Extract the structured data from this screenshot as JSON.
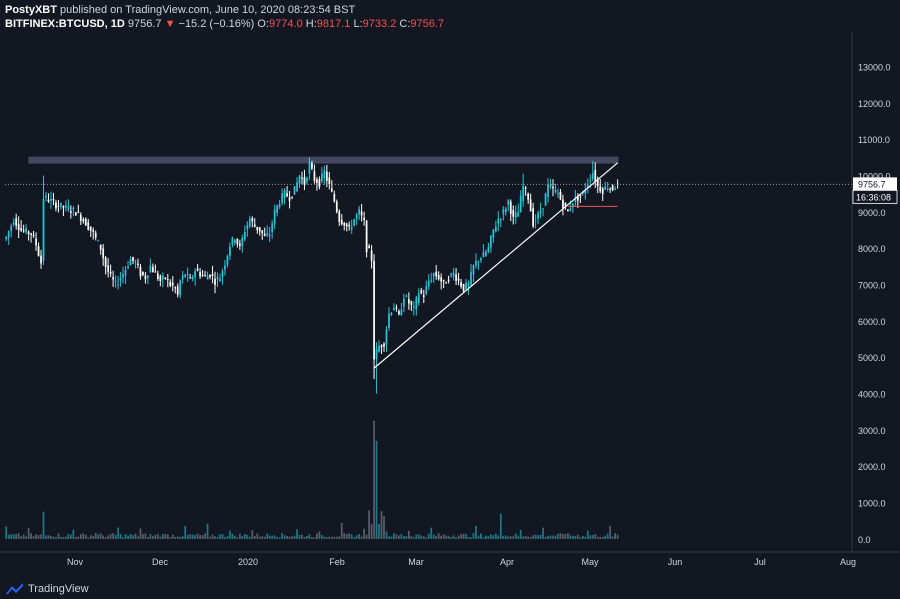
{
  "header": {
    "author": "PostyXBT",
    "published": "published on TradingView.com, June 10, 2020 08:23:54 BST"
  },
  "symbol_line": {
    "symbol": "BITFINEX:BTCUSD, 1D",
    "last": "9756.7",
    "change_icon": "triangle-down-icon",
    "change": "−15.2 (−0.16%)",
    "open_label": "O:",
    "open": "9774.0",
    "high_label": "H:",
    "high": "9817.1",
    "low_label": "L:",
    "low": "9733.2",
    "close_label": "C:",
    "close": "9756.7"
  },
  "price_tag": {
    "price": "9756.7",
    "countdown": "16:36:08"
  },
  "footer": {
    "brand": "TradingView",
    "logo_icon": "tradingview-logo-icon"
  },
  "colors": {
    "background": "#131722",
    "up": "#26c6da",
    "down": "#ffffff",
    "resistance_zone": "#9fa8da",
    "trendline": "#ffffff",
    "stop_line": "#ef5350",
    "axis_text": "#d1d4dc"
  },
  "chart_data": {
    "type": "candlestick",
    "x_ticks": [
      "Nov",
      "Dec",
      "2020",
      "Feb",
      "Mar",
      "Apr",
      "May",
      "Jun",
      "Jul",
      "Aug"
    ],
    "y_ticks": [
      0.0,
      1000.0,
      2000.0,
      3000.0,
      4000.0,
      5000.0,
      6000.0,
      7000.0,
      8000.0,
      9000.0,
      10000.0,
      11000.0,
      12000.0,
      13000.0
    ],
    "y_tick_labels": [
      "0.0",
      "1000.0",
      "2000.0",
      "3000.0",
      "4000.0",
      "5000.0",
      "6000.0",
      "7000.0",
      "8000.0",
      "9000.0",
      "10000.0",
      "11000.0",
      "12000.0",
      "13000.0"
    ],
    "ylim": [
      -250,
      13950
    ],
    "close_path": [
      [
        0,
        8300
      ],
      [
        3,
        8800
      ],
      [
        6,
        8500
      ],
      [
        10,
        8400
      ],
      [
        12,
        8100
      ],
      [
        14,
        7600
      ],
      [
        15,
        9400
      ],
      [
        18,
        9300
      ],
      [
        20,
        9200
      ],
      [
        24,
        9100
      ],
      [
        28,
        9000
      ],
      [
        32,
        8700
      ],
      [
        35,
        8400
      ],
      [
        38,
        8000
      ],
      [
        40,
        7500
      ],
      [
        42,
        7200
      ],
      [
        44,
        7000
      ],
      [
        47,
        7300
      ],
      [
        50,
        7700
      ],
      [
        52,
        7600
      ],
      [
        54,
        7300
      ],
      [
        56,
        7200
      ],
      [
        58,
        7500
      ],
      [
        60,
        7300
      ],
      [
        62,
        7100
      ],
      [
        64,
        7200
      ],
      [
        66,
        7000
      ],
      [
        68,
        6900
      ],
      [
        69,
        6700
      ],
      [
        70,
        7100
      ],
      [
        72,
        7300
      ],
      [
        74,
        7100
      ],
      [
        76,
        7400
      ],
      [
        78,
        7300
      ],
      [
        80,
        7200
      ],
      [
        82,
        7300
      ],
      [
        84,
        7100
      ],
      [
        86,
        7200
      ],
      [
        88,
        7600
      ],
      [
        90,
        8100
      ],
      [
        92,
        8300
      ],
      [
        94,
        8000
      ],
      [
        96,
        8500
      ],
      [
        98,
        8800
      ],
      [
        100,
        8600
      ],
      [
        102,
        8500
      ],
      [
        104,
        8300
      ],
      [
        106,
        8400
      ],
      [
        108,
        9000
      ],
      [
        110,
        9300
      ],
      [
        112,
        9500
      ],
      [
        114,
        9400
      ],
      [
        116,
        9600
      ],
      [
        118,
        10000
      ],
      [
        120,
        9800
      ],
      [
        122,
        10300
      ],
      [
        124,
        9900
      ],
      [
        126,
        9800
      ],
      [
        128,
        10100
      ],
      [
        130,
        9700
      ],
      [
        132,
        9300
      ],
      [
        134,
        8800
      ],
      [
        136,
        8700
      ],
      [
        138,
        8500
      ],
      [
        140,
        8800
      ],
      [
        142,
        9000
      ],
      [
        144,
        8700
      ],
      [
        145,
        8000
      ],
      [
        146,
        7900
      ],
      [
        147,
        7700
      ],
      [
        148,
        5000
      ],
      [
        150,
        5300
      ],
      [
        152,
        5400
      ],
      [
        154,
        6200
      ],
      [
        156,
        6400
      ],
      [
        158,
        6100
      ],
      [
        160,
        6700
      ],
      [
        162,
        6500
      ],
      [
        164,
        6300
      ],
      [
        166,
        6800
      ],
      [
        168,
        6700
      ],
      [
        170,
        7100
      ],
      [
        172,
        7300
      ],
      [
        174,
        7200
      ],
      [
        176,
        7000
      ],
      [
        178,
        7200
      ],
      [
        180,
        7300
      ],
      [
        182,
        7100
      ],
      [
        184,
        6900
      ],
      [
        186,
        7000
      ],
      [
        188,
        7500
      ],
      [
        190,
        7700
      ],
      [
        192,
        7800
      ],
      [
        194,
        8000
      ],
      [
        196,
        8500
      ],
      [
        198,
        8800
      ],
      [
        200,
        9000
      ],
      [
        202,
        9300
      ],
      [
        204,
        8800
      ],
      [
        206,
        9000
      ],
      [
        208,
        9700
      ],
      [
        210,
        9400
      ],
      [
        212,
        8700
      ],
      [
        214,
        8900
      ],
      [
        216,
        9200
      ],
      [
        218,
        9700
      ],
      [
        220,
        9600
      ],
      [
        222,
        9500
      ],
      [
        224,
        9200
      ],
      [
        226,
        9000
      ],
      [
        228,
        9300
      ],
      [
        230,
        9400
      ],
      [
        232,
        9500
      ],
      [
        234,
        9800
      ],
      [
        236,
        10100
      ],
      [
        238,
        9700
      ],
      [
        240,
        9600
      ],
      [
        242,
        9700
      ],
      [
        244,
        9650
      ],
      [
        246,
        9757
      ]
    ],
    "resistance_zone": {
      "y_low": 10350,
      "y_high": 10500,
      "x_start": 14,
      "x_end": 246
    },
    "trendline": {
      "x1": 148,
      "y1": 4700,
      "x2": 246,
      "y2": 10350
    },
    "stop_line": {
      "x_start": 226,
      "x_end": 246,
      "y": 9150
    },
    "last_price": 9756.7
  }
}
